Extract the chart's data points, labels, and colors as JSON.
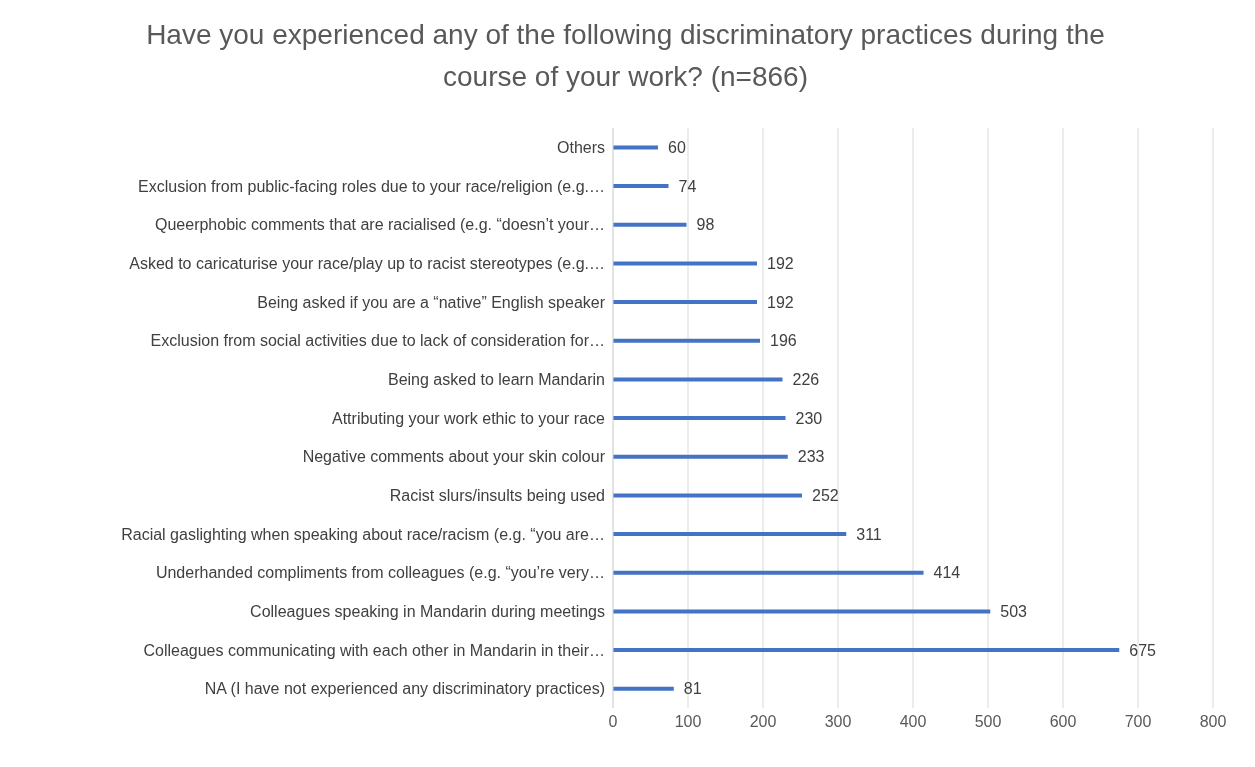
{
  "chart_data": {
    "type": "bar",
    "orientation": "horizontal",
    "title": "Have you experienced any of the following discriminatory practices during the course of your work? (n=866)",
    "categories": [
      "Others",
      "Exclusion from public-facing roles due to your race/religion (e.g.…",
      "Queerphobic comments that are racialised (e.g. “doesn’t your…",
      "Asked to caricaturise your race/play up to racist stereotypes (e.g.…",
      "Being asked if you are a “native” English speaker",
      "Exclusion from social activities due to lack of consideration for…",
      "Being asked to learn Mandarin",
      "Attributing your work ethic to your race",
      "Negative comments about your skin colour",
      "Racist slurs/insults being used",
      "Racial gaslighting when speaking about race/racism (e.g. “you are…",
      "Underhanded compliments from colleagues (e.g. “you’re very…",
      "Colleagues speaking in Mandarin during meetings",
      "Colleagues communicating with each other in Mandarin in their…",
      "NA (I have not experienced any discriminatory practices)"
    ],
    "values": [
      60,
      74,
      98,
      192,
      192,
      196,
      226,
      230,
      233,
      252,
      311,
      414,
      503,
      675,
      81
    ],
    "color": "#4472c4",
    "xlim": [
      0,
      800
    ],
    "xticks": [
      0,
      100,
      200,
      300,
      400,
      500,
      600,
      700,
      800
    ],
    "grid": "x",
    "data_labels": true
  }
}
